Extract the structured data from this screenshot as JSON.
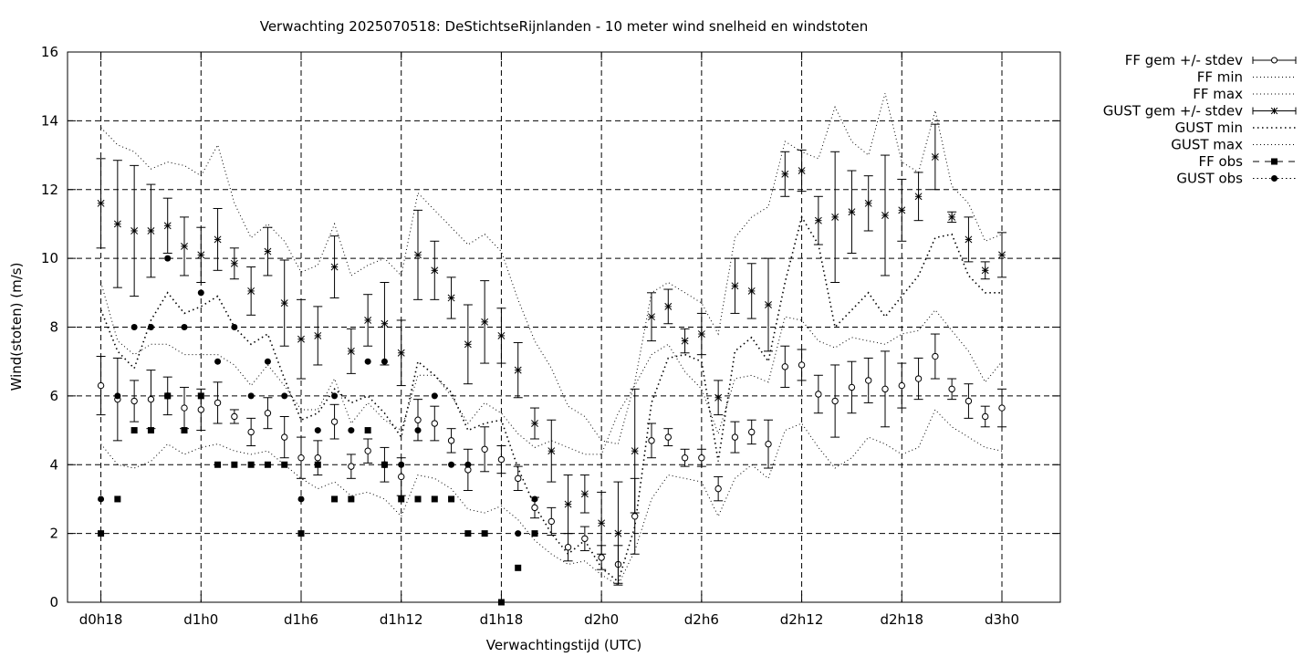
{
  "chart_data": {
    "type": "line",
    "title": "Verwachting 2025070518: DeStichtseRijnlanden - 10 meter wind snelheid en windstoten",
    "xlabel": "Verwachtingstijd (UTC)",
    "ylabel": "Wind(stoten) (m/s)",
    "ylim": [
      0,
      16
    ],
    "xlim_hours": [
      16.0,
      75.5
    ],
    "y_ticks": [
      0,
      2,
      4,
      6,
      8,
      10,
      12,
      14,
      16
    ],
    "x_ticks": [
      {
        "hour": 18,
        "label": "d0h18"
      },
      {
        "hour": 24,
        "label": "d1h0"
      },
      {
        "hour": 30,
        "label": "d1h6"
      },
      {
        "hour": 36,
        "label": "d1h12"
      },
      {
        "hour": 42,
        "label": "d1h18"
      },
      {
        "hour": 48,
        "label": "d2h0"
      },
      {
        "hour": 54,
        "label": "d2h6"
      },
      {
        "hour": 60,
        "label": "d2h12"
      },
      {
        "hour": 66,
        "label": "d2h18"
      },
      {
        "hour": 72,
        "label": "d3h0"
      }
    ],
    "grid": true,
    "legend_position": "outside-top-right",
    "legend": [
      {
        "key": "ff_mean",
        "label": "FF gem +/- stdev"
      },
      {
        "key": "ff_min",
        "label": "FF min"
      },
      {
        "key": "ff_max",
        "label": "FF max"
      },
      {
        "key": "gust_mean",
        "label": "GUST gem +/- stdev"
      },
      {
        "key": "gust_min",
        "label": "GUST min"
      },
      {
        "key": "gust_max",
        "label": "GUST max"
      },
      {
        "key": "ff_obs",
        "label": "FF obs"
      },
      {
        "key": "gust_obs",
        "label": "GUST obs"
      }
    ],
    "x_hours": [
      18,
      19,
      20,
      21,
      22,
      23,
      24,
      25,
      26,
      27,
      28,
      29,
      30,
      31,
      32,
      33,
      34,
      35,
      36,
      37,
      38,
      39,
      40,
      41,
      42,
      43,
      44,
      45,
      46,
      47,
      48,
      49,
      50,
      51,
      52,
      53,
      54,
      55,
      56,
      57,
      58,
      59,
      60,
      61,
      62,
      63,
      64,
      65,
      66,
      67,
      68,
      69,
      70,
      71,
      72
    ],
    "ff_mean": [
      6.3,
      5.9,
      5.85,
      5.9,
      6.0,
      5.65,
      5.6,
      5.8,
      5.4,
      4.95,
      5.5,
      4.8,
      4.2,
      4.2,
      5.25,
      3.95,
      4.4,
      4.0,
      3.65,
      5.3,
      5.2,
      4.7,
      3.85,
      4.45,
      4.15,
      3.6,
      2.75,
      2.35,
      1.6,
      1.85,
      1.3,
      1.1,
      2.5,
      4.7,
      4.8,
      4.2,
      4.2,
      3.3,
      4.8,
      4.95,
      4.6,
      6.85,
      6.9,
      6.05,
      5.85,
      6.25,
      6.45,
      6.2,
      6.3,
      6.5,
      7.15,
      6.2,
      5.85,
      5.4,
      5.65
    ],
    "ff_sd": [
      0.85,
      1.2,
      0.6,
      0.85,
      0.55,
      0.6,
      0.6,
      0.6,
      0.2,
      0.4,
      0.45,
      0.6,
      0.6,
      0.5,
      0.5,
      0.35,
      0.35,
      0.5,
      0.55,
      0.6,
      0.5,
      0.35,
      0.6,
      0.65,
      0.4,
      0.35,
      0.3,
      0.4,
      0.4,
      0.35,
      0.35,
      0.55,
      1.1,
      0.5,
      0.25,
      0.25,
      0.25,
      0.35,
      0.45,
      0.35,
      0.7,
      0.6,
      0.45,
      0.55,
      1.05,
      0.75,
      0.65,
      1.1,
      0.65,
      0.6,
      0.65,
      0.3,
      0.5,
      0.3,
      0.55
    ],
    "gust_mean": [
      11.6,
      11.0,
      10.8,
      10.8,
      10.95,
      10.35,
      10.1,
      10.55,
      9.85,
      9.05,
      10.2,
      8.7,
      7.65,
      7.75,
      9.75,
      7.3,
      8.2,
      8.1,
      7.25,
      10.1,
      9.65,
      8.85,
      7.5,
      8.15,
      7.75,
      6.75,
      5.2,
      4.4,
      2.85,
      3.15,
      2.3,
      2.0,
      4.4,
      8.3,
      8.6,
      7.6,
      7.8,
      5.95,
      9.2,
      9.05,
      8.65,
      12.45,
      12.55,
      11.1,
      11.2,
      11.35,
      11.6,
      11.25,
      11.4,
      11.8,
      12.95,
      11.2,
      10.55,
      9.65,
      10.1
    ],
    "gust_sd": [
      1.3,
      1.85,
      1.9,
      1.35,
      0.8,
      0.85,
      0.8,
      0.9,
      0.45,
      0.7,
      0.7,
      1.25,
      1.15,
      0.85,
      0.9,
      0.65,
      0.75,
      1.2,
      0.95,
      1.3,
      0.85,
      0.6,
      1.15,
      1.2,
      0.8,
      0.8,
      0.45,
      0.9,
      0.85,
      0.55,
      0.9,
      1.5,
      1.8,
      0.7,
      0.5,
      0.35,
      0.6,
      0.5,
      0.8,
      0.8,
      1.35,
      0.65,
      0.6,
      0.7,
      1.9,
      1.2,
      0.8,
      1.75,
      0.9,
      0.7,
      0.95,
      0.15,
      0.65,
      0.25,
      0.65
    ],
    "ff_min": [
      4.6,
      4.0,
      3.9,
      4.1,
      4.6,
      4.3,
      4.5,
      4.6,
      4.4,
      4.3,
      4.4,
      4.0,
      3.6,
      3.3,
      3.5,
      3.1,
      3.2,
      3.0,
      2.5,
      3.7,
      3.6,
      3.3,
      2.7,
      2.6,
      2.8,
      2.4,
      1.8,
      1.4,
      1.1,
      1.2,
      0.8,
      0.5,
      1.5,
      3.0,
      3.7,
      3.6,
      3.5,
      2.5,
      3.6,
      4.0,
      3.6,
      5.0,
      5.2,
      4.5,
      3.9,
      4.2,
      4.8,
      4.6,
      4.3,
      4.5,
      5.6,
      5.1,
      4.8,
      4.5,
      4.4
    ],
    "ff_max": [
      9.3,
      7.6,
      7.2,
      7.5,
      7.5,
      7.2,
      7.2,
      7.2,
      6.9,
      6.3,
      6.9,
      6.3,
      5.6,
      5.6,
      6.5,
      5.2,
      5.8,
      5.3,
      5.0,
      6.6,
      6.6,
      6.0,
      5.2,
      5.8,
      5.5,
      4.9,
      4.5,
      4.7,
      4.5,
      4.3,
      4.3,
      5.5,
      6.3,
      7.2,
      7.5,
      6.7,
      6.2,
      4.9,
      6.5,
      6.6,
      6.4,
      8.3,
      8.2,
      7.6,
      7.4,
      7.7,
      7.6,
      7.5,
      7.8,
      7.9,
      8.5,
      7.9,
      7.3,
      6.4,
      7.0
    ],
    "gust_min": [
      8.5,
      7.3,
      6.8,
      8.2,
      9.0,
      8.4,
      8.6,
      8.9,
      8.0,
      7.5,
      7.8,
      6.5,
      5.3,
      5.5,
      6.2,
      5.8,
      6.0,
      5.5,
      4.8,
      7.0,
      6.6,
      6.1,
      5.0,
      5.2,
      5.3,
      3.9,
      2.8,
      2.0,
      1.4,
      1.8,
      1.0,
      0.6,
      2.2,
      5.8,
      7.1,
      7.2,
      7.0,
      4.1,
      7.3,
      7.7,
      7.0,
      9.3,
      11.2,
      10.4,
      8.0,
      8.5,
      9.0,
      8.3,
      8.9,
      9.5,
      10.6,
      10.7,
      9.5,
      9.0,
      9.0
    ],
    "gust_max": [
      13.8,
      13.3,
      13.1,
      12.6,
      12.8,
      12.7,
      12.4,
      13.3,
      11.6,
      10.6,
      11.0,
      10.5,
      9.6,
      9.8,
      11.0,
      9.5,
      9.8,
      10.0,
      9.5,
      11.9,
      11.4,
      10.9,
      10.4,
      10.7,
      10.2,
      8.8,
      7.6,
      6.8,
      5.7,
      5.4,
      4.7,
      4.6,
      6.4,
      9.0,
      9.3,
      9.0,
      8.7,
      7.8,
      10.6,
      11.2,
      11.5,
      13.4,
      13.1,
      12.9,
      14.4,
      13.4,
      13.0,
      14.8,
      12.8,
      12.5,
      14.3,
      12.1,
      11.6,
      10.5,
      10.7
    ],
    "ff_obs": [
      {
        "x": 18,
        "y": 2
      },
      {
        "x": 19,
        "y": 3
      },
      {
        "x": 20,
        "y": 5
      },
      {
        "x": 21,
        "y": 5
      },
      {
        "x": 22,
        "y": 6
      },
      {
        "x": 23,
        "y": 5
      },
      {
        "x": 24,
        "y": 6
      },
      {
        "x": 25,
        "y": 4
      },
      {
        "x": 26,
        "y": 4
      },
      {
        "x": 27,
        "y": 4
      },
      {
        "x": 28,
        "y": 4
      },
      {
        "x": 29,
        "y": 4
      },
      {
        "x": 30,
        "y": 2
      },
      {
        "x": 31,
        "y": 4
      },
      {
        "x": 32,
        "y": 3
      },
      {
        "x": 33,
        "y": 3
      },
      {
        "x": 34,
        "y": 5
      },
      {
        "x": 35,
        "y": 4
      },
      {
        "x": 36,
        "y": 3
      },
      {
        "x": 37,
        "y": 3
      },
      {
        "x": 38,
        "y": 3
      },
      {
        "x": 39,
        "y": 3
      },
      {
        "x": 40,
        "y": 2
      },
      {
        "x": 41,
        "y": 2
      },
      {
        "x": 42,
        "y": 0
      },
      {
        "x": 43,
        "y": 1
      },
      {
        "x": 44,
        "y": 2
      }
    ],
    "gust_obs": [
      {
        "x": 18,
        "y": 3
      },
      {
        "x": 19,
        "y": 6
      },
      {
        "x": 20,
        "y": 8
      },
      {
        "x": 21,
        "y": 8
      },
      {
        "x": 22,
        "y": 10
      },
      {
        "x": 23,
        "y": 8
      },
      {
        "x": 24,
        "y": 9
      },
      {
        "x": 25,
        "y": 7
      },
      {
        "x": 26,
        "y": 8
      },
      {
        "x": 27,
        "y": 6
      },
      {
        "x": 28,
        "y": 7
      },
      {
        "x": 29,
        "y": 6
      },
      {
        "x": 30,
        "y": 3
      },
      {
        "x": 31,
        "y": 5
      },
      {
        "x": 32,
        "y": 6
      },
      {
        "x": 33,
        "y": 5
      },
      {
        "x": 34,
        "y": 7
      },
      {
        "x": 35,
        "y": 7
      },
      {
        "x": 36,
        "y": 4
      },
      {
        "x": 37,
        "y": 5
      },
      {
        "x": 38,
        "y": 6
      },
      {
        "x": 39,
        "y": 4
      },
      {
        "x": 40,
        "y": 4
      },
      {
        "x": 43,
        "y": 2
      },
      {
        "x": 44,
        "y": 3
      }
    ]
  }
}
